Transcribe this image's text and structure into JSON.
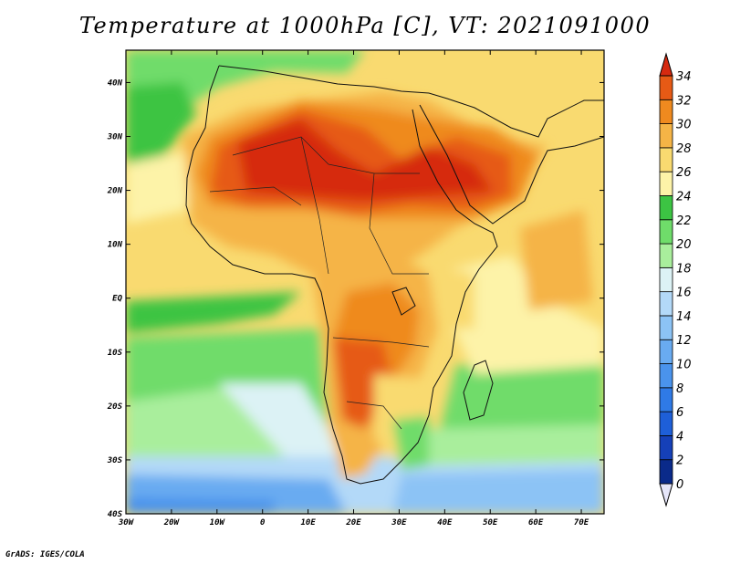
{
  "title": "Temperature at 1000hPa [C], VT: 2021091000",
  "credit": "GrADS: IGES/COLA",
  "map": {
    "variable": "Temperature at 1000hPa",
    "units": "C",
    "valid_time": "2021091000",
    "lon_range": [
      -30,
      75
    ],
    "lat_range": [
      -40,
      46
    ],
    "lon_ticks": [
      {
        "value": -30,
        "label": "30W"
      },
      {
        "value": -20,
        "label": "20W"
      },
      {
        "value": -10,
        "label": "10W"
      },
      {
        "value": 0,
        "label": "0"
      },
      {
        "value": 10,
        "label": "10E"
      },
      {
        "value": 20,
        "label": "20E"
      },
      {
        "value": 30,
        "label": "30E"
      },
      {
        "value": 40,
        "label": "40E"
      },
      {
        "value": 50,
        "label": "50E"
      },
      {
        "value": 60,
        "label": "60E"
      },
      {
        "value": 70,
        "label": "70E"
      }
    ],
    "lat_ticks": [
      {
        "value": 40,
        "label": "40N"
      },
      {
        "value": 30,
        "label": "30N"
      },
      {
        "value": 20,
        "label": "20N"
      },
      {
        "value": 10,
        "label": "10N"
      },
      {
        "value": 0,
        "label": "EQ"
      },
      {
        "value": -10,
        "label": "10S"
      },
      {
        "value": -20,
        "label": "20S"
      },
      {
        "value": -30,
        "label": "30S"
      },
      {
        "value": -40,
        "label": "40S"
      }
    ]
  },
  "colorbar": {
    "levels": [
      "0",
      "2",
      "4",
      "6",
      "8",
      "10",
      "12",
      "14",
      "16",
      "18",
      "20",
      "22",
      "24",
      "26",
      "28",
      "30",
      "32",
      "34"
    ],
    "colors": [
      "#0a2a8a",
      "#1540b8",
      "#1e5fd8",
      "#2f7ae6",
      "#4a93ec",
      "#69abf1",
      "#8cc3f5",
      "#b3d9f8",
      "#dcf2f5",
      "#a9ee9c",
      "#6fdc6a",
      "#3cc443",
      "#fdf3a8",
      "#f9da70",
      "#f5b446",
      "#ef8a1f",
      "#e65a15",
      "#d62a10"
    ]
  }
}
